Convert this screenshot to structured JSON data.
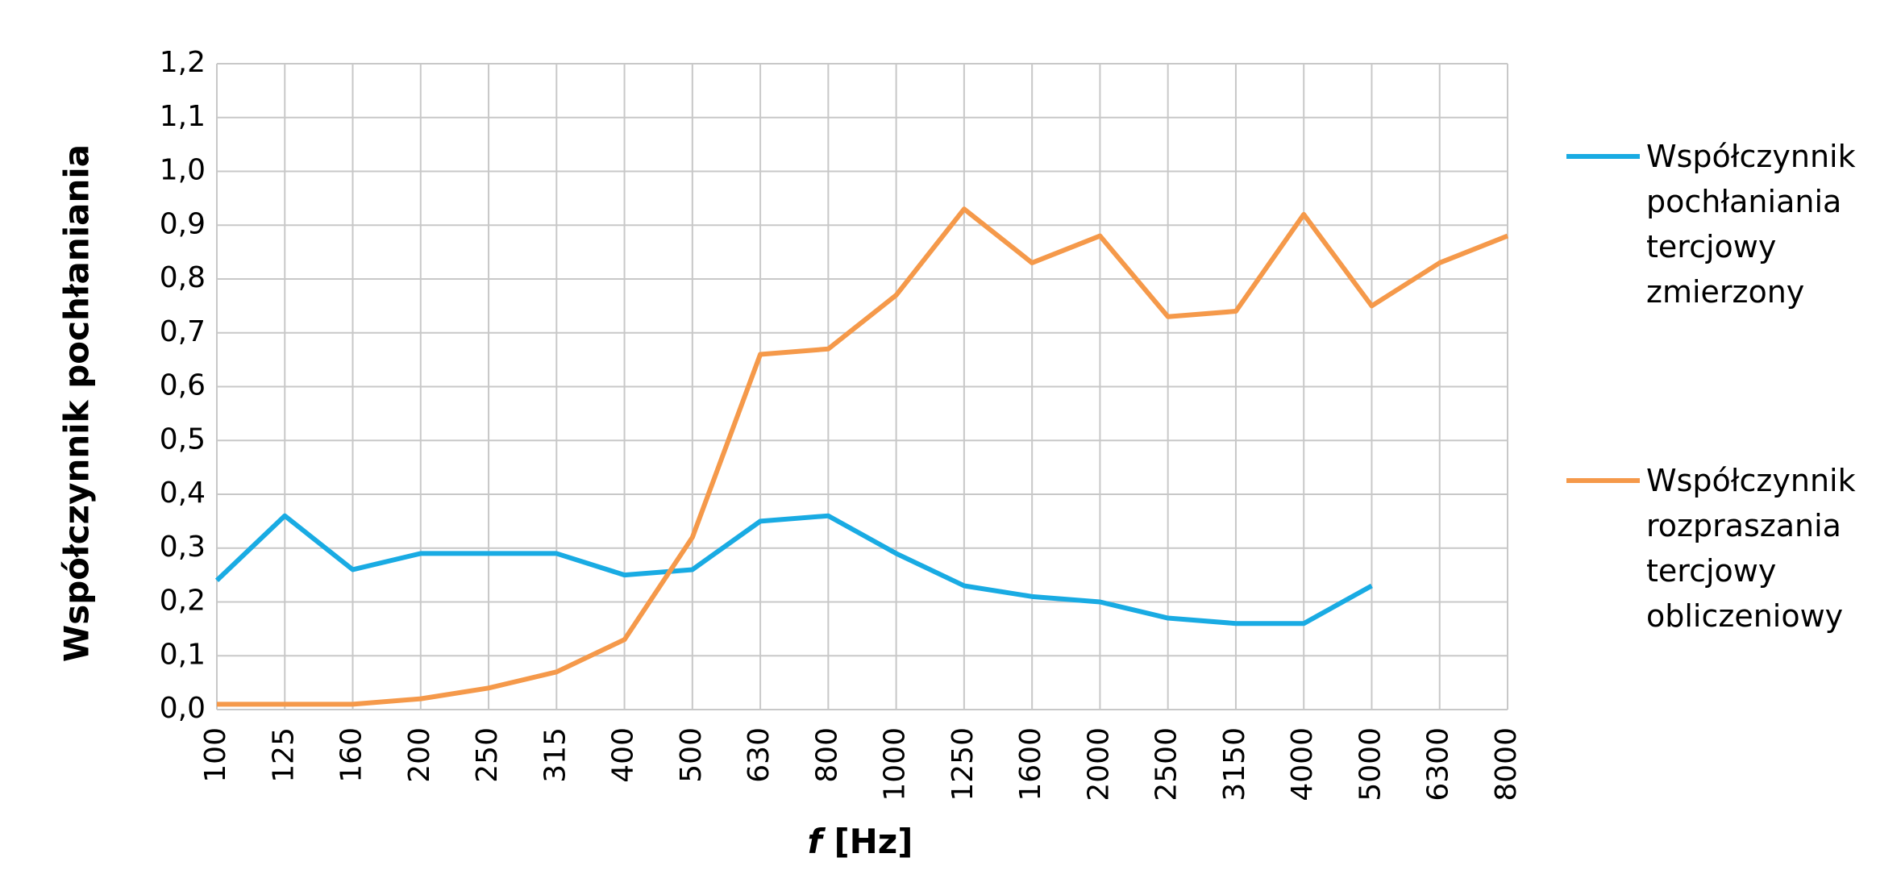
{
  "chart_data": {
    "type": "line",
    "y_label": "Współczynnik pochłaniania",
    "x_label_symbol": "f",
    "x_label_unit": "[Hz]",
    "categories": [
      "100",
      "125",
      "160",
      "200",
      "250",
      "315",
      "400",
      "500",
      "630",
      "800",
      "1000",
      "1250",
      "1600",
      "2000",
      "2500",
      "3150",
      "4000",
      "5000",
      "6300",
      "8000"
    ],
    "series": [
      {
        "name": "Współczynnik pochłaniania tercjowy zmierzony",
        "color": "#19abe3",
        "values": [
          0.24,
          0.36,
          0.26,
          0.29,
          0.29,
          0.29,
          0.25,
          0.26,
          0.35,
          0.36,
          0.29,
          0.23,
          0.21,
          0.2,
          0.17,
          0.16,
          0.16,
          0.23,
          null,
          null
        ]
      },
      {
        "name": "Współczynnik rozpraszania tercjowy obliczeniowy",
        "color": "#f5994a",
        "values": [
          0.01,
          0.01,
          0.01,
          0.02,
          0.04,
          0.07,
          0.13,
          0.32,
          0.66,
          0.67,
          0.77,
          0.93,
          0.83,
          0.88,
          0.73,
          0.74,
          0.92,
          0.75,
          0.83,
          0.88
        ]
      }
    ],
    "ylim": [
      0,
      1.2
    ],
    "yticks": [
      {
        "value": 0,
        "label": "0,0"
      },
      {
        "value": 0.1,
        "label": "0,1"
      },
      {
        "value": 0.2,
        "label": "0,2"
      },
      {
        "value": 0.3,
        "label": "0,3"
      },
      {
        "value": 0.4,
        "label": "0,4"
      },
      {
        "value": 0.5,
        "label": "0,5"
      },
      {
        "value": 0.6,
        "label": "0,6"
      },
      {
        "value": 0.7,
        "label": "0,7"
      },
      {
        "value": 0.8,
        "label": "0,8"
      },
      {
        "value": 0.9,
        "label": "0,9"
      },
      {
        "value": 1.0,
        "label": "1,0"
      },
      {
        "value": 1.1,
        "label": "1,1"
      },
      {
        "value": 1.2,
        "label": "1,2"
      }
    ],
    "grid": true,
    "legend": "right"
  }
}
